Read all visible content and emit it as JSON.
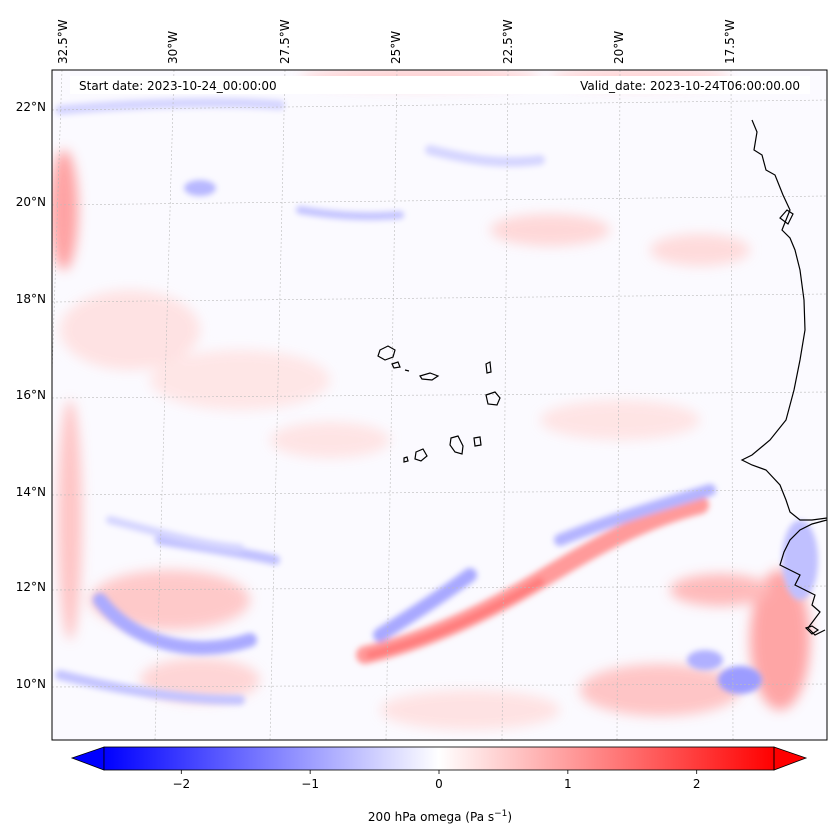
{
  "header": {
    "start_date": "Start date: 2023-10-24_00:00:00",
    "valid_date": "Valid_date: 2023-10-24T06:00:00.00"
  },
  "map": {
    "lon_labels": [
      "32.5°W",
      "30°W",
      "27.5°W",
      "25°W",
      "22.5°W",
      "20°W",
      "17.5°W"
    ],
    "lat_labels": [
      "22°N",
      "20°N",
      "18°N",
      "16°N",
      "14°N",
      "12°N",
      "10°N"
    ],
    "field": "omega",
    "colormap": "bwr",
    "gridlines": true
  },
  "colorbar": {
    "ticks": [
      "−2",
      "−1",
      "0",
      "1",
      "2"
    ],
    "tick_values": [
      -2,
      -1,
      0,
      1,
      2
    ],
    "range": [
      -2.6,
      2.6
    ],
    "label_main": "200 hPa omega (Pa s",
    "label_sup": "−1",
    "label_end": ")",
    "extend": "both",
    "colors": {
      "low": "#0000ff",
      "mid": "#ffffff",
      "high": "#ff0000"
    }
  }
}
